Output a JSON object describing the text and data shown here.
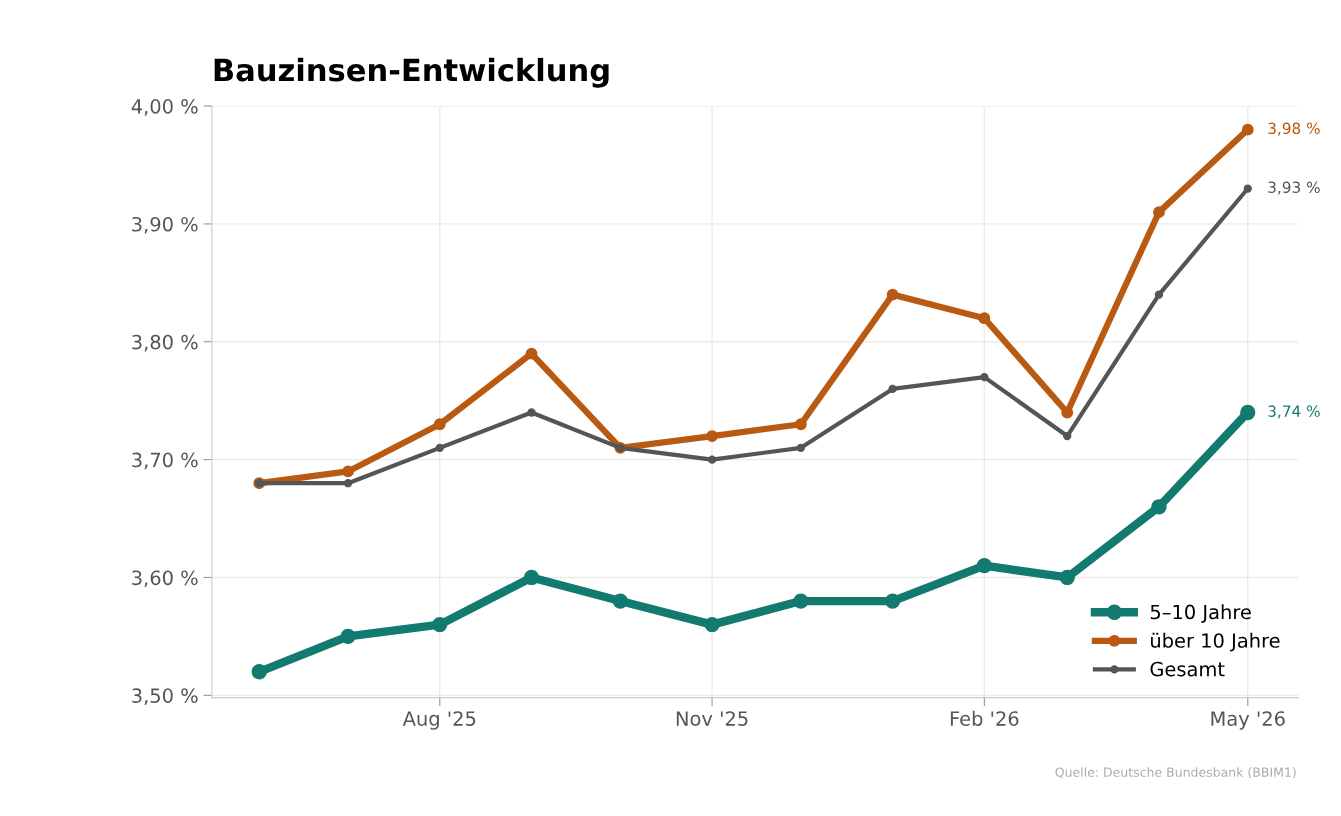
{
  "chart_data": {
    "type": "line",
    "title": "Bauzinsen-Entwicklung",
    "x": [
      "2025-06-01",
      "2025-07-01",
      "2025-08-01",
      "2025-09-01",
      "2025-10-01",
      "2025-11-01",
      "2025-12-01",
      "2026-01-01",
      "2026-02-01",
      "2026-03-01",
      "2026-04-01",
      "2026-05-01"
    ],
    "series": [
      {
        "name": "5–10 Jahre",
        "color": "#137a70",
        "values": [
          3.52,
          3.55,
          3.56,
          3.6,
          3.58,
          3.56,
          3.58,
          3.58,
          3.61,
          3.6,
          3.66,
          3.74
        ]
      },
      {
        "name": "über 10 Jahre",
        "color": "#b85a12",
        "values": [
          3.68,
          3.69,
          3.73,
          3.79,
          3.71,
          3.72,
          3.73,
          3.84,
          3.82,
          3.74,
          3.91,
          3.98
        ]
      },
      {
        "name": "Gesamt",
        "color": "#555555",
        "values": [
          3.68,
          3.68,
          3.71,
          3.74,
          3.71,
          3.7,
          3.71,
          3.76,
          3.77,
          3.72,
          3.84,
          3.93
        ]
      }
    ],
    "xlim": [
      "2025-05-16",
      "2026-05-18"
    ],
    "xticks": [
      {
        "value": "2025-08-01",
        "label": "Aug '25"
      },
      {
        "value": "2025-11-01",
        "label": "Nov '25"
      },
      {
        "value": "2026-02-01",
        "label": "Feb '26"
      },
      {
        "value": "2026-05-01",
        "label": "May '26"
      }
    ],
    "ylim": [
      3.498,
      4.0
    ],
    "yticks": [
      {
        "value": 3.5,
        "label": "3,50 %"
      },
      {
        "value": 3.6,
        "label": "3,60 %"
      },
      {
        "value": 3.7,
        "label": "3,70 %"
      },
      {
        "value": 3.8,
        "label": "3,80 %"
      },
      {
        "value": 3.9,
        "label": "3,90 %"
      },
      {
        "value": 4.0,
        "label": "4,00 %"
      }
    ],
    "annotations": [
      {
        "text": "3,74 %",
        "x": "2026-05-01",
        "y": 3.74
      },
      {
        "text": "3,98 %",
        "x": "2026-05-01",
        "y": 3.98
      },
      {
        "text": "3,93 %",
        "x": "2026-05-01",
        "y": 3.93
      },
      "Quelle: Deutsche Bundesbank (BBIM1)"
    ],
    "grid": true,
    "legend": "bottom right",
    "marker": "circle",
    "line_style": "solid"
  }
}
